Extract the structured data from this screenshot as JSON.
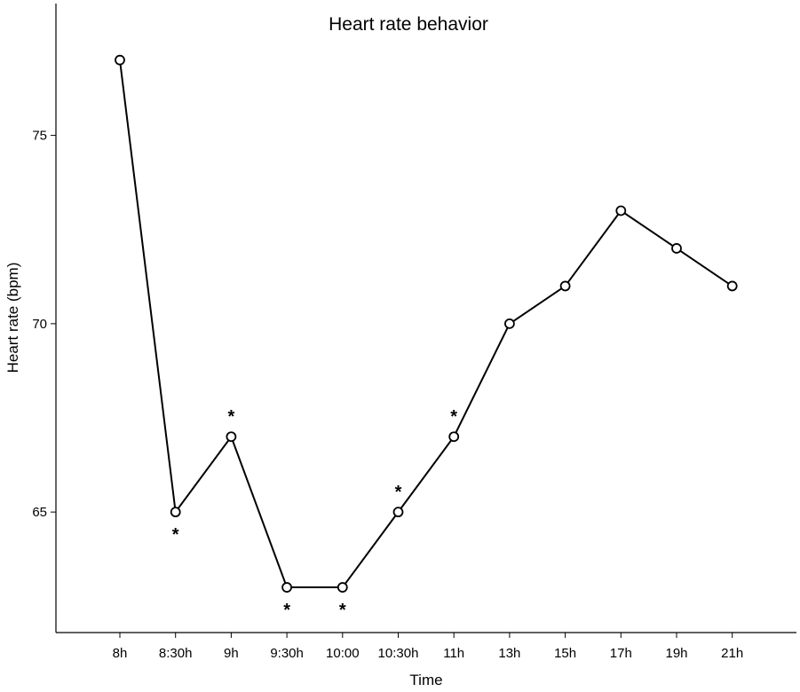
{
  "chart_data": {
    "type": "line",
    "title": "Heart rate behavior",
    "xlabel": "Time",
    "ylabel": "Heart rate (bpm)",
    "categories": [
      "8h",
      "8:30h",
      "9h",
      "9:30h",
      "10:00",
      "10:30h",
      "11h",
      "13h",
      "15h",
      "17h",
      "19h",
      "21h"
    ],
    "values": [
      77,
      65,
      67,
      63,
      63,
      65,
      67,
      70,
      71,
      73,
      72,
      71
    ],
    "ylim": [
      61.8,
      78.5
    ],
    "yticks": [
      65,
      70,
      75
    ],
    "grid": false,
    "legend": "none",
    "markers": "open-circle",
    "annotations": [
      {
        "category": "8:30h",
        "text": "*",
        "position": "below"
      },
      {
        "category": "9h",
        "text": "*",
        "position": "above"
      },
      {
        "category": "9:30h",
        "text": "*",
        "position": "below"
      },
      {
        "category": "10:00",
        "text": "*",
        "position": "below"
      },
      {
        "category": "10:30h",
        "text": "*",
        "position": "above"
      },
      {
        "category": "11h",
        "text": "*",
        "position": "above"
      }
    ]
  }
}
